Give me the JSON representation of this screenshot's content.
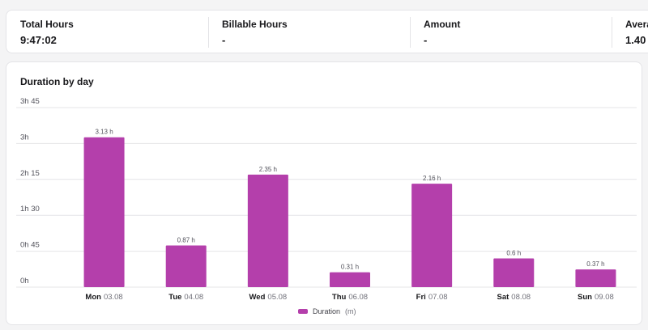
{
  "stats": [
    {
      "label": "Total Hours",
      "value": "9:47:02"
    },
    {
      "label": "Billable Hours",
      "value": "-"
    },
    {
      "label": "Amount",
      "value": "-"
    },
    {
      "label": "Avera",
      "value": "1.40"
    }
  ],
  "chart_title": "Duration by day",
  "colors": {
    "bar": "#b43fab",
    "grid": "#e4e4e7",
    "axis_text": "#52525b"
  },
  "chart_data": {
    "type": "bar",
    "title": "Duration by day",
    "xlabel": "",
    "ylabel": "",
    "ylim": [
      0,
      3.75
    ],
    "yticks": [
      {
        "value": 0,
        "label": "0h"
      },
      {
        "value": 0.75,
        "label": "0h 45"
      },
      {
        "value": 1.5,
        "label": "1h 30"
      },
      {
        "value": 2.25,
        "label": "2h 15"
      },
      {
        "value": 3,
        "label": "3h"
      },
      {
        "value": 3.75,
        "label": "3h 45"
      }
    ],
    "categories": [
      {
        "day": "Mon",
        "date": "03.08"
      },
      {
        "day": "Tue",
        "date": "04.08"
      },
      {
        "day": "Wed",
        "date": "05.08"
      },
      {
        "day": "Thu",
        "date": "06.08"
      },
      {
        "day": "Fri",
        "date": "07.08"
      },
      {
        "day": "Sat",
        "date": "08.08"
      },
      {
        "day": "Sun",
        "date": "09.08"
      }
    ],
    "series": [
      {
        "name": "Duration",
        "values": [
          3.13,
          0.87,
          2.35,
          0.31,
          2.16,
          0.6,
          0.37
        ]
      }
    ],
    "data_labels": [
      "3.13 h",
      "0.87 h",
      "2.35 h",
      "0.31 h",
      "2.16 h",
      "0.6 h",
      "0.37 h"
    ],
    "legend": {
      "label": "Duration",
      "unit": "(m)",
      "position": "bottom"
    },
    "grid": true
  }
}
